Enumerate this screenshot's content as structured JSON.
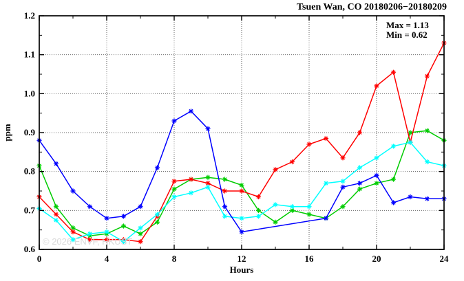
{
  "chart_data": {
    "type": "line",
    "title": "Tsuen Wan, CO 20180206−20180209",
    "xlabel": "Hours",
    "ylabel": "ppm",
    "annotations": {
      "max_label": "Max = 1.13",
      "min_label": "Min = 0.62"
    },
    "watermark": "© 2026 ENVF, HKUST",
    "xlim": [
      0,
      24
    ],
    "ylim": [
      0.6,
      1.2
    ],
    "xticks": [
      0,
      4,
      8,
      12,
      16,
      20,
      24
    ],
    "xtick_labels": [
      "0",
      "4",
      "8",
      "12",
      "16",
      "20",
      "24"
    ],
    "yticks": [
      0.6,
      0.7,
      0.8,
      0.9,
      1.0,
      1.1,
      1.2
    ],
    "ytick_labels": [
      "0.6",
      "0.7",
      "0.8",
      "0.9",
      "1.0",
      "1.1",
      "1.2"
    ],
    "x_minor_step": 2,
    "y_minor_step": 0.05,
    "grid": true,
    "background": "#ffffff",
    "frame_color": "#000000",
    "grid_color": "#000000",
    "x": [
      0,
      1,
      2,
      3,
      4,
      5,
      6,
      7,
      8,
      9,
      10,
      11,
      12,
      13,
      14,
      15,
      16,
      17,
      18,
      19,
      20,
      21,
      22,
      23,
      24
    ],
    "series": [
      {
        "name": "green-line",
        "color": "#00cc00",
        "values": [
          0.815,
          0.71,
          0.655,
          0.635,
          0.64,
          0.66,
          0.64,
          0.67,
          0.755,
          0.78,
          0.785,
          0.78,
          0.765,
          0.7,
          0.67,
          0.7,
          0.69,
          0.68,
          0.71,
          0.755,
          0.77,
          0.78,
          0.9,
          0.905,
          0.88
        ]
      },
      {
        "name": "red-line",
        "color": "#ff0000",
        "values": [
          0.735,
          0.69,
          0.645,
          0.625,
          0.625,
          0.625,
          0.62,
          0.685,
          0.775,
          0.78,
          0.77,
          0.75,
          0.75,
          0.735,
          0.805,
          0.825,
          0.87,
          0.885,
          0.835,
          0.9,
          1.02,
          1.055,
          0.875,
          1.045,
          1.13
        ]
      },
      {
        "name": "cyan-line",
        "color": "#00ffff",
        "values": [
          0.705,
          0.675,
          0.625,
          0.64,
          0.645,
          0.62,
          0.655,
          0.69,
          0.735,
          0.745,
          0.76,
          0.685,
          0.68,
          0.685,
          0.715,
          0.71,
          0.71,
          0.77,
          0.775,
          0.81,
          0.835,
          0.865,
          0.875,
          0.825,
          0.815
        ]
      },
      {
        "name": "blue-line",
        "color": "#0000ff",
        "values": [
          0.88,
          0.82,
          0.75,
          0.71,
          0.68,
          0.685,
          0.71,
          0.81,
          0.93,
          0.955,
          0.91,
          0.71,
          0.645,
          null,
          null,
          null,
          null,
          0.68,
          0.76,
          0.77,
          0.79,
          0.72,
          0.735,
          0.73,
          0.73
        ]
      }
    ]
  }
}
